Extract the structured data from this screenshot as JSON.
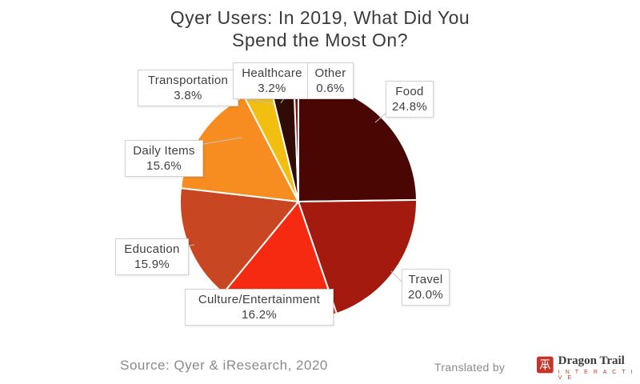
{
  "title": {
    "line1": "Qyer Users: In 2019, What Did You",
    "line2": "Spend the Most On?"
  },
  "chart_data": {
    "type": "pie",
    "title": "Qyer Users: In 2019, What Did You Spend the Most On?",
    "unit": "percent",
    "direction": "clockwise",
    "start_angle_deg": 0,
    "legend": "callout-labels-around-pie",
    "slices": [
      {
        "label": "Food",
        "value": 24.8,
        "pct_label": "24.8%",
        "color": "#4A0602"
      },
      {
        "label": "Travel",
        "value": 20.0,
        "pct_label": "20.0%",
        "color": "#A41A0E"
      },
      {
        "label": "Culture/Entertainment",
        "value": 16.2,
        "pct_label": "16.2%",
        "color": "#F52A11"
      },
      {
        "label": "Education",
        "value": 15.9,
        "pct_label": "15.9%",
        "color": "#C84621"
      },
      {
        "label": "Daily Items",
        "value": 15.6,
        "pct_label": "15.6%",
        "color": "#F78D20"
      },
      {
        "label": "Transportation",
        "value": 3.8,
        "pct_label": "3.8%",
        "color": "#F2BE10"
      },
      {
        "label": "Healthcare",
        "value": 3.2,
        "pct_label": "3.2%",
        "color": "#310B06"
      },
      {
        "label": "Other",
        "value": 0.6,
        "pct_label": "0.6%",
        "color": "#6E1812"
      }
    ]
  },
  "footer": {
    "source": "Source: Qyer & iResearch, 2020",
    "translated_by": "Translated by",
    "logo": {
      "name": "Dragon Trail",
      "subtitle": "I N T E R A C T I V E",
      "seal_color": "#C5352C"
    }
  }
}
